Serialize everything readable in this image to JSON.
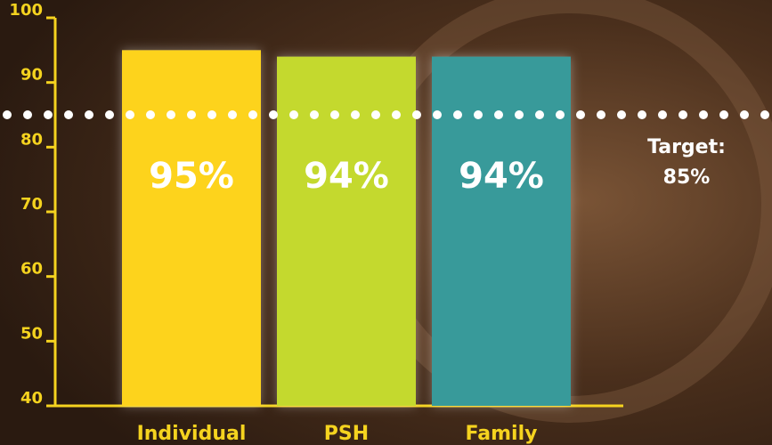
{
  "chart_data": {
    "type": "bar",
    "categories": [
      "Individual",
      "PSH",
      "Family"
    ],
    "values": [
      95,
      94,
      94
    ],
    "value_labels": [
      "95%",
      "94%",
      "94%"
    ],
    "colors": [
      "#fdd31f",
      "#c4d92f",
      "#389a9a"
    ],
    "ylim": [
      40,
      100
    ],
    "yticks": [
      40,
      50,
      60,
      70,
      80,
      90,
      100
    ],
    "target": {
      "value": 85,
      "label": "Target:",
      "value_label": "85%"
    }
  }
}
